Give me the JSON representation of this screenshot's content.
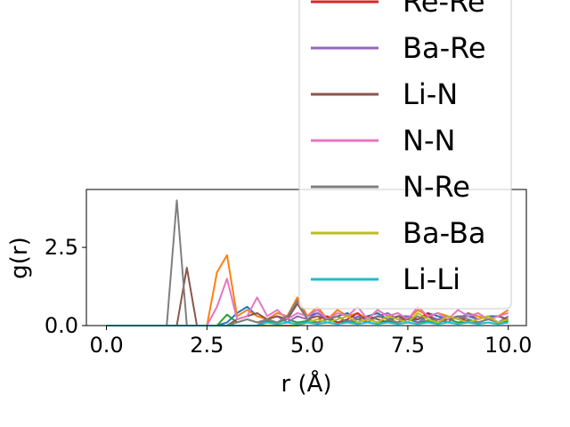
{
  "chart_data": {
    "type": "line",
    "xlabel": "r (Å)",
    "ylabel": "g(r)",
    "x": [
      0,
      0.25,
      0.5,
      0.75,
      1,
      1.25,
      1.5,
      1.75,
      2,
      2.25,
      2.5,
      2.75,
      3,
      3.25,
      3.5,
      3.75,
      4,
      4.25,
      4.5,
      4.75,
      5,
      5.25,
      5.5,
      5.75,
      6,
      6.25,
      6.5,
      6.75,
      7,
      7.25,
      7.5,
      7.75,
      8,
      8.25,
      8.5,
      8.75,
      9,
      9.25,
      9.5,
      9.75,
      10
    ],
    "series": [
      {
        "color": "#1f77b4",
        "values": [
          0,
          0,
          0,
          0,
          0,
          0,
          0,
          0,
          0,
          0,
          0,
          0,
          0.1,
          0.4,
          0.6,
          0.3,
          0.2,
          0.3,
          0.2,
          0.7,
          0.3,
          0.4,
          0.2,
          0.3,
          0.4,
          0.2,
          0.3,
          0.4,
          0.2,
          0.3,
          0.3,
          0.2,
          0.4,
          0.3,
          0.2,
          0.3,
          0.3,
          0.2,
          0.3,
          0.3,
          0.2
        ]
      },
      {
        "color": "#ff7f0e",
        "values": [
          0,
          0,
          0,
          0,
          0,
          0,
          0,
          0,
          0,
          0,
          0,
          1.7,
          2.25,
          0.3,
          0.5,
          0.3,
          0.2,
          0.4,
          0.3,
          0.9,
          0.3,
          0.6,
          0.2,
          0.5,
          0.3,
          0.4,
          0.2,
          0.5,
          0.3,
          0.4,
          0.2,
          0.5,
          0.3,
          0.4,
          0.3,
          0.2,
          0.4,
          0.3,
          0.2,
          0.3,
          0.5
        ]
      },
      {
        "color": "#2ca02c",
        "values": [
          0,
          0,
          0,
          0,
          0,
          0,
          0,
          0,
          0,
          0,
          0,
          0,
          0.35,
          0.1,
          0.2,
          0.1,
          0.15,
          0.1,
          0.2,
          0.1,
          0.15,
          0.1,
          0.2,
          0.1,
          0.15,
          0.1,
          0.2,
          0.1,
          0.15,
          0.1,
          0.2,
          0.1,
          0.15,
          0.1,
          0.2,
          0.1,
          0.15,
          0.1,
          0.2,
          0.1,
          0.15
        ]
      },
      {
        "name": "Re-Re",
        "color": "#d62728",
        "values": [
          0,
          0,
          0,
          0,
          0,
          0,
          0,
          0,
          0,
          0,
          0,
          0,
          0,
          0,
          0,
          0,
          0,
          0,
          0,
          0,
          0.1,
          0.2,
          0.3,
          0.1,
          0.2,
          0.4,
          0.1,
          0.3,
          0.2,
          0.1,
          0.3,
          0.2,
          0.4,
          0.1,
          0.2,
          0.3,
          0.1,
          0.2,
          0.3,
          0.1,
          0.2
        ]
      },
      {
        "name": "Ba-Re",
        "color": "#9467bd",
        "values": [
          0,
          0,
          0,
          0,
          0,
          0,
          0,
          0,
          0,
          0,
          0,
          0,
          0,
          0,
          0,
          0,
          0.2,
          0.3,
          0.1,
          0.3,
          0.2,
          0.4,
          0.2,
          0.3,
          0.1,
          0.3,
          0.2,
          0.3,
          0.4,
          0.2,
          0.3,
          0.1,
          0.3,
          0.2,
          0.3,
          0.2,
          0.4,
          0.2,
          0.3,
          0.1,
          0.3
        ]
      },
      {
        "name": "Li-N",
        "color": "#8c564b",
        "values": [
          0,
          0,
          0,
          0,
          0,
          0,
          0,
          0,
          1.85,
          0,
          0,
          0,
          0,
          0.2,
          0.3,
          0.4,
          0.2,
          0.3,
          0.2,
          0.7,
          0.2,
          0.3,
          0.2,
          0.3,
          0.1,
          0.2,
          0.3,
          0.2,
          0.1,
          0.3,
          0.2,
          0.2,
          0.3,
          0.1,
          0.2,
          0.3,
          0.2,
          0.1,
          0.2,
          0.3,
          0.2
        ]
      },
      {
        "name": "N-N",
        "color": "#e377c2",
        "values": [
          0,
          0,
          0,
          0,
          0,
          0,
          0,
          0,
          0,
          0,
          0,
          0.6,
          1.5,
          0.2,
          0.3,
          0.9,
          0.3,
          0.5,
          0.2,
          0.4,
          0.3,
          0.5,
          0.2,
          0.4,
          0.3,
          0.6,
          0.2,
          0.5,
          0.3,
          0.4,
          0.2,
          0.6,
          0.3,
          0.4,
          0.2,
          0.5,
          0.3,
          0.4,
          0.2,
          0.3,
          0.4
        ]
      },
      {
        "name": "N-Re",
        "color": "#7f7f7f",
        "values": [
          0,
          0,
          0,
          0,
          0,
          0,
          0,
          4.0,
          0,
          0,
          0,
          0,
          0,
          0.1,
          0.2,
          0.1,
          0.2,
          0.1,
          0.3,
          0.8,
          0.2,
          0.1,
          0.2,
          0.3,
          0.1,
          0.2,
          0.1,
          0.3,
          0.2,
          0.1,
          0.2,
          0.3,
          0.1,
          0.2,
          0.1,
          0.3,
          0.2,
          0.1,
          0.2,
          0.1,
          0.2
        ]
      },
      {
        "name": "Ba-Ba",
        "color": "#bcbd22",
        "values": [
          0,
          0,
          0,
          0,
          0,
          0,
          0,
          0,
          0,
          0,
          0,
          0,
          0,
          0,
          0,
          0,
          0,
          0,
          0,
          0,
          0.1,
          0.2,
          0.1,
          0.2,
          0.3,
          0.1,
          0.2,
          0.1,
          0.3,
          0.2,
          0.1,
          0.4,
          0.2,
          0.1,
          0.3,
          0.2,
          0.1,
          0.2,
          0.3,
          0.1,
          0.2
        ]
      },
      {
        "name": "Li-Li",
        "color": "#17becf",
        "values": [
          0,
          0,
          0,
          0,
          0,
          0,
          0,
          0,
          0,
          0,
          0,
          0,
          0,
          0,
          0,
          0,
          0.1,
          0.05,
          0.1,
          0.05,
          0.1,
          0.05,
          0.1,
          0.05,
          0.1,
          0.05,
          0.1,
          0.05,
          0.1,
          0.05,
          0.1,
          0.05,
          0.1,
          0.05,
          0.1,
          0.05,
          0.1,
          0.05,
          0.1,
          0.05,
          0.1
        ]
      }
    ],
    "xlim": [
      -0.5,
      10.45
    ],
    "ylim": [
      0,
      4.35
    ],
    "xticks": [
      {
        "value": 0,
        "label": "0.0"
      },
      {
        "value": 2.5,
        "label": "2.5"
      },
      {
        "value": 5,
        "label": "5.0"
      },
      {
        "value": 7.5,
        "label": "7.5"
      },
      {
        "value": 10,
        "label": "10.0"
      }
    ],
    "yticks": [
      {
        "value": 0,
        "label": "0.0"
      },
      {
        "value": 2.5,
        "label": "2.5"
      }
    ],
    "grid": false,
    "legend": "upper right"
  }
}
